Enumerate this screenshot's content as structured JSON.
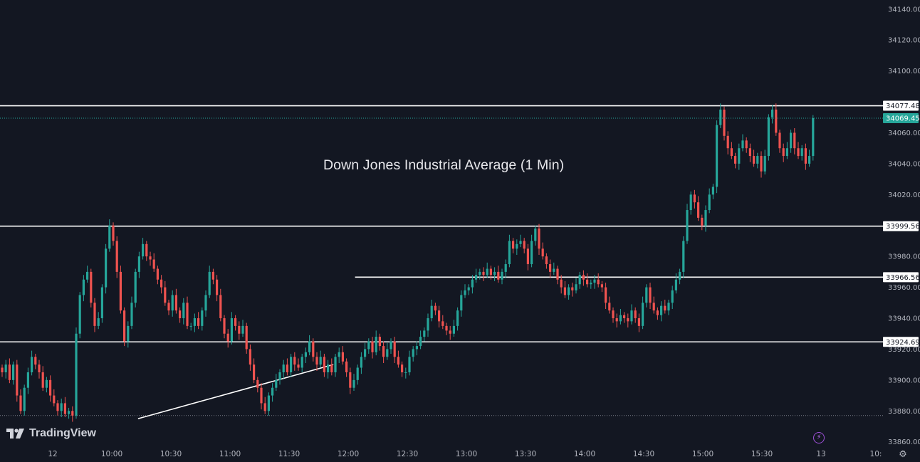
{
  "app": {
    "brand": "TradingView"
  },
  "icons": {
    "logo": "tradingview-logo-icon",
    "lightning": "lightning-icon",
    "settings": "gear-icon"
  },
  "colors": {
    "background": "#131722",
    "up": "#26a69a",
    "down": "#ef5350",
    "line": "#ffffff",
    "text": "#b2b5be",
    "current_price": "#26a69a",
    "accent_purple": "#9c4fd6"
  },
  "chart_data": {
    "type": "candlestick",
    "title": "Down Jones Industrial Average (1 Min)",
    "xlabel": "",
    "ylabel": "",
    "ylim": [
      33850,
      34150
    ],
    "grid": false,
    "y_ticks": [
      "34140.00",
      "34120.00",
      "34100.00",
      "34060.00",
      "34040.00",
      "34020.00",
      "33980.00",
      "33960.00",
      "33940.00",
      "33920.00",
      "33900.00",
      "33880.00",
      "33860.00"
    ],
    "x_ticks": [
      "12",
      "10:00",
      "10:30",
      "11:00",
      "11:30",
      "12:00",
      "12:30",
      "13:00",
      "13:30",
      "14:00",
      "14:30",
      "15:00",
      "15:30",
      "13",
      "10:"
    ],
    "price_levels": [
      {
        "label": "34077.48",
        "value": 34077.48,
        "from": "09:30",
        "to": "end"
      },
      {
        "label": "33999.56",
        "value": 33999.56,
        "from": "09:30",
        "to": "end"
      },
      {
        "label": "33966.56",
        "value": 33966.56,
        "from": "12:30",
        "to": "end"
      },
      {
        "label": "33924.69",
        "value": 33924.69,
        "from": "09:30",
        "to": "end"
      }
    ],
    "current_price": {
      "label": "34069.45",
      "value": 34069.45
    },
    "previous_close": 33877,
    "trendline": {
      "start": {
        "time": "10:40",
        "value": 33875
      },
      "end": {
        "time": "12:19",
        "value": 33910
      }
    },
    "candles_close": [
      [
        1,
        33905
      ],
      [
        2,
        33910
      ],
      [
        3,
        33900
      ],
      [
        4,
        33910
      ],
      [
        5,
        33890
      ],
      [
        6,
        33880
      ],
      [
        7,
        33895
      ],
      [
        8,
        33905
      ],
      [
        9,
        33915
      ],
      [
        10,
        33910
      ],
      [
        11,
        33905
      ],
      [
        12,
        33895
      ],
      [
        13,
        33900
      ],
      [
        14,
        33890
      ],
      [
        15,
        33885
      ],
      [
        16,
        33880
      ],
      [
        17,
        33885
      ],
      [
        18,
        33878
      ],
      [
        19,
        33880
      ],
      [
        20,
        33877
      ],
      [
        21,
        33930
      ],
      [
        22,
        33955
      ],
      [
        23,
        33965
      ],
      [
        24,
        33970
      ],
      [
        25,
        33950
      ],
      [
        26,
        33935
      ],
      [
        27,
        33940
      ],
      [
        28,
        33960
      ],
      [
        29,
        33985
      ],
      [
        30,
        34000
      ],
      [
        31,
        33990
      ],
      [
        32,
        33970
      ],
      [
        33,
        33945
      ],
      [
        34,
        33925
      ],
      [
        35,
        33935
      ],
      [
        36,
        33950
      ],
      [
        37,
        33970
      ],
      [
        38,
        33980
      ],
      [
        39,
        33988
      ],
      [
        40,
        33980
      ],
      [
        41,
        33978
      ],
      [
        42,
        33972
      ],
      [
        43,
        33965
      ],
      [
        44,
        33960
      ],
      [
        45,
        33950
      ],
      [
        46,
        33945
      ],
      [
        47,
        33955
      ],
      [
        48,
        33945
      ],
      [
        49,
        33940
      ],
      [
        50,
        33950
      ],
      [
        51,
        33935
      ],
      [
        52,
        33935
      ],
      [
        53,
        33940
      ],
      [
        54,
        33935
      ],
      [
        55,
        33945
      ],
      [
        56,
        33955
      ],
      [
        57,
        33970
      ],
      [
        58,
        33965
      ],
      [
        59,
        33955
      ],
      [
        60,
        33940
      ],
      [
        61,
        33930
      ],
      [
        62,
        33925
      ],
      [
        63,
        33940
      ],
      [
        64,
        33935
      ],
      [
        65,
        33930
      ],
      [
        66,
        33935
      ],
      [
        67,
        33920
      ],
      [
        68,
        33910
      ],
      [
        69,
        33900
      ],
      [
        70,
        33895
      ],
      [
        71,
        33885
      ],
      [
        72,
        33880
      ],
      [
        73,
        33890
      ],
      [
        74,
        33895
      ],
      [
        75,
        33900
      ],
      [
        76,
        33905
      ],
      [
        77,
        33910
      ],
      [
        78,
        33905
      ],
      [
        79,
        33915
      ],
      [
        80,
        33910
      ],
      [
        81,
        33908
      ],
      [
        82,
        33915
      ],
      [
        83,
        33918
      ],
      [
        84,
        33925
      ],
      [
        85,
        33915
      ],
      [
        86,
        33910
      ],
      [
        87,
        33915
      ],
      [
        88,
        33905
      ],
      [
        89,
        33910
      ],
      [
        90,
        33905
      ],
      [
        91,
        33915
      ],
      [
        92,
        33918
      ],
      [
        93,
        33912
      ],
      [
        94,
        33905
      ],
      [
        95,
        33895
      ],
      [
        96,
        33900
      ],
      [
        97,
        33908
      ],
      [
        98,
        33915
      ],
      [
        99,
        33920
      ],
      [
        100,
        33925
      ],
      [
        101,
        33918
      ],
      [
        102,
        33928
      ],
      [
        103,
        33922
      ],
      [
        104,
        33915
      ],
      [
        105,
        33920
      ],
      [
        106,
        33925
      ],
      [
        107,
        33915
      ],
      [
        108,
        33910
      ],
      [
        109,
        33905
      ],
      [
        110,
        33905
      ],
      [
        111,
        33915
      ],
      [
        112,
        33920
      ],
      [
        113,
        33922
      ],
      [
        114,
        33928
      ],
      [
        115,
        33932
      ],
      [
        116,
        33940
      ],
      [
        117,
        33948
      ],
      [
        118,
        33945
      ],
      [
        119,
        33938
      ],
      [
        120,
        33935
      ],
      [
        121,
        33932
      ],
      [
        122,
        33930
      ],
      [
        123,
        33935
      ],
      [
        124,
        33945
      ],
      [
        125,
        33955
      ],
      [
        126,
        33958
      ],
      [
        127,
        33960
      ],
      [
        128,
        33965
      ],
      [
        129,
        33968
      ],
      [
        130,
        33970
      ],
      [
        131,
        33968
      ],
      [
        132,
        33972
      ],
      [
        133,
        33968
      ],
      [
        134,
        33970
      ],
      [
        135,
        33965
      ],
      [
        136,
        33970
      ],
      [
        137,
        33975
      ],
      [
        138,
        33990
      ],
      [
        139,
        33985
      ],
      [
        140,
        33988
      ],
      [
        141,
        33990
      ],
      [
        142,
        33985
      ],
      [
        143,
        33975
      ],
      [
        144,
        33990
      ],
      [
        145,
        33998
      ],
      [
        146,
        33985
      ],
      [
        147,
        33980
      ],
      [
        148,
        33975
      ],
      [
        149,
        33970
      ],
      [
        150,
        33972
      ],
      [
        151,
        33965
      ],
      [
        152,
        33960
      ],
      [
        153,
        33955
      ],
      [
        154,
        33960
      ],
      [
        155,
        33958
      ],
      [
        156,
        33962
      ],
      [
        157,
        33968
      ],
      [
        158,
        33965
      ],
      [
        159,
        33962
      ],
      [
        160,
        33963
      ],
      [
        161,
        33965
      ],
      [
        162,
        33962
      ],
      [
        163,
        33960
      ],
      [
        164,
        33950
      ],
      [
        165,
        33945
      ],
      [
        166,
        33940
      ],
      [
        167,
        33938
      ],
      [
        168,
        33942
      ],
      [
        169,
        33940
      ],
      [
        170,
        33938
      ],
      [
        171,
        33945
      ],
      [
        172,
        33940
      ],
      [
        173,
        33935
      ],
      [
        174,
        33950
      ],
      [
        175,
        33960
      ],
      [
        176,
        33950
      ],
      [
        177,
        33945
      ],
      [
        178,
        33942
      ],
      [
        179,
        33948
      ],
      [
        180,
        33945
      ],
      [
        181,
        33950
      ],
      [
        182,
        33958
      ],
      [
        183,
        33965
      ],
      [
        184,
        33970
      ],
      [
        185,
        33990
      ],
      [
        186,
        34010
      ],
      [
        187,
        34020
      ],
      [
        188,
        34015
      ],
      [
        189,
        34005
      ],
      [
        190,
        34000
      ],
      [
        191,
        34010
      ],
      [
        192,
        34020
      ],
      [
        193,
        34025
      ],
      [
        194,
        34065
      ],
      [
        195,
        34075
      ],
      [
        196,
        34058
      ],
      [
        197,
        34050
      ],
      [
        198,
        34045
      ],
      [
        199,
        34040
      ],
      [
        200,
        34050
      ],
      [
        201,
        34055
      ],
      [
        202,
        34050
      ],
      [
        203,
        34045
      ],
      [
        204,
        34040
      ],
      [
        205,
        34045
      ],
      [
        206,
        34035
      ],
      [
        207,
        34045
      ],
      [
        208,
        34070
      ],
      [
        209,
        34075
      ],
      [
        210,
        34060
      ],
      [
        211,
        34050
      ],
      [
        212,
        34045
      ],
      [
        213,
        34050
      ],
      [
        214,
        34060
      ],
      [
        215,
        34050
      ],
      [
        216,
        34045
      ],
      [
        217,
        34050
      ],
      [
        218,
        34040
      ],
      [
        219,
        34045
      ],
      [
        220,
        34069.45
      ]
    ]
  }
}
